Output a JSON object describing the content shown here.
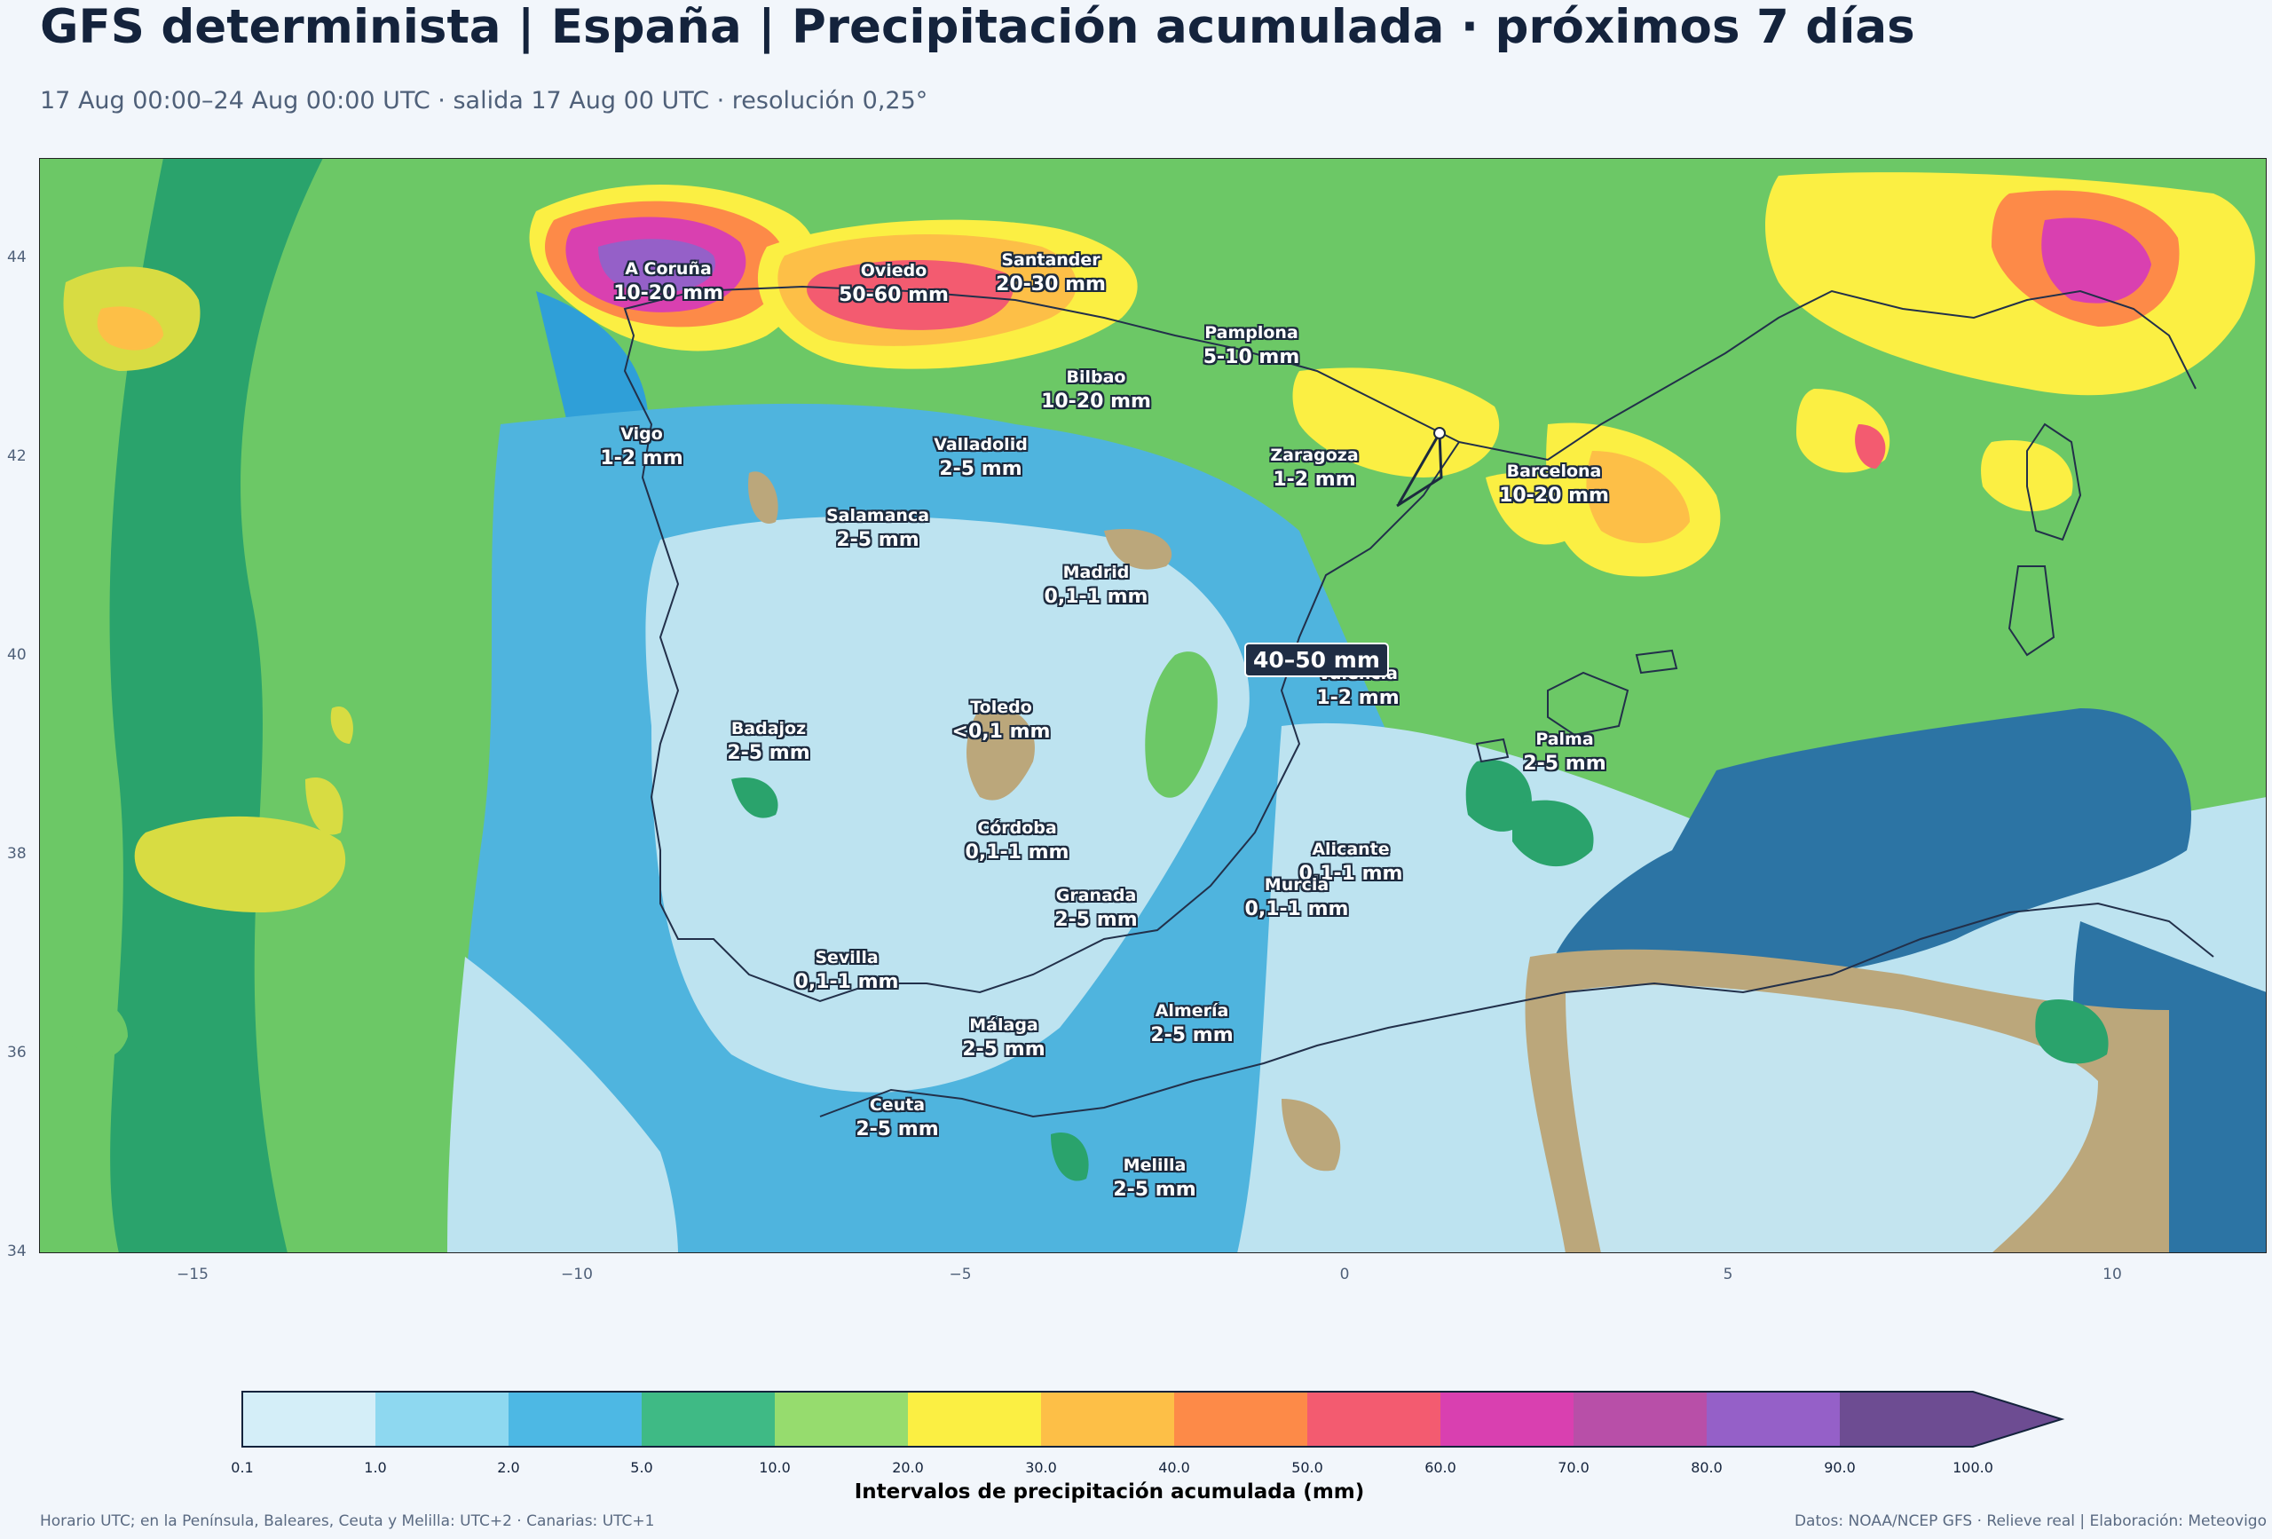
{
  "header": {
    "title": "GFS determinista | España | Precipitación acumulada · próximos 7 días",
    "subtitle": "17 Aug 00:00–24 Aug 00:00 UTC · salida 17 Aug 00 UTC · resolución 0,25°"
  },
  "map": {
    "y_ticks": [
      "44",
      "42",
      "40",
      "38",
      "36",
      "34"
    ],
    "x_ticks": [
      "−15",
      "−10",
      "−5",
      "0",
      "5",
      "10"
    ],
    "highlight": "40–50 mm",
    "cities": [
      {
        "name": "A Coruña",
        "value": "10-20 mm"
      },
      {
        "name": "Oviedo",
        "value": "50-60 mm"
      },
      {
        "name": "Santander",
        "value": "20-30 mm"
      },
      {
        "name": "Pamplona",
        "value": "5-10 mm"
      },
      {
        "name": "Bilbao",
        "value": "10-20 mm"
      },
      {
        "name": "Vigo",
        "value": "1-2 mm"
      },
      {
        "name": "Valladolid",
        "value": "2-5 mm"
      },
      {
        "name": "Zaragoza",
        "value": "1-2 mm"
      },
      {
        "name": "Barcelona",
        "value": "10-20 mm"
      },
      {
        "name": "Salamanca",
        "value": "2-5 mm"
      },
      {
        "name": "Madrid",
        "value": "0,1-1 mm"
      },
      {
        "name": "Valencia",
        "value": "1-2 mm"
      },
      {
        "name": "Toledo",
        "value": "<0,1 mm"
      },
      {
        "name": "Badajoz",
        "value": "2-5 mm"
      },
      {
        "name": "Palma",
        "value": "2-5 mm"
      },
      {
        "name": "Córdoba",
        "value": "0,1-1 mm"
      },
      {
        "name": "Alicante",
        "value": "0,1-1 mm"
      },
      {
        "name": "Murcia",
        "value": "0,1-1 mm"
      },
      {
        "name": "Granada",
        "value": "2-5 mm"
      },
      {
        "name": "Sevilla",
        "value": "0,1-1 mm"
      },
      {
        "name": "Almería",
        "value": "2-5 mm"
      },
      {
        "name": "Málaga",
        "value": "2-5 mm"
      },
      {
        "name": "Ceuta",
        "value": "2-5 mm"
      },
      {
        "name": "Melilla",
        "value": "2-5 mm"
      }
    ]
  },
  "colorbar": {
    "ticks": [
      "0.1",
      "1.0",
      "2.0",
      "5.0",
      "10.0",
      "20.0",
      "30.0",
      "40.0",
      "50.0",
      "60.0",
      "70.0",
      "80.0",
      "90.0",
      "100.0"
    ],
    "colors": [
      "#d4eef8",
      "#8ed8f0",
      "#4db8e4",
      "#3fba85",
      "#96dc6e",
      "#fbef43",
      "#fdbf47",
      "#fd8a48",
      "#f35b70",
      "#d940b0",
      "#b84fa8",
      "#9560c8",
      "#6d4c92"
    ],
    "label": "Intervalos de precipitación acumulada (mm)"
  },
  "footer": {
    "left": "Horario UTC; en la Península, Baleares, Ceuta y Melilla: UTC+2 · Canarias: UTC+1",
    "right": "Datos: NOAA/NCEP GFS · Relieve real | Elaboración: Meteovigo"
  }
}
